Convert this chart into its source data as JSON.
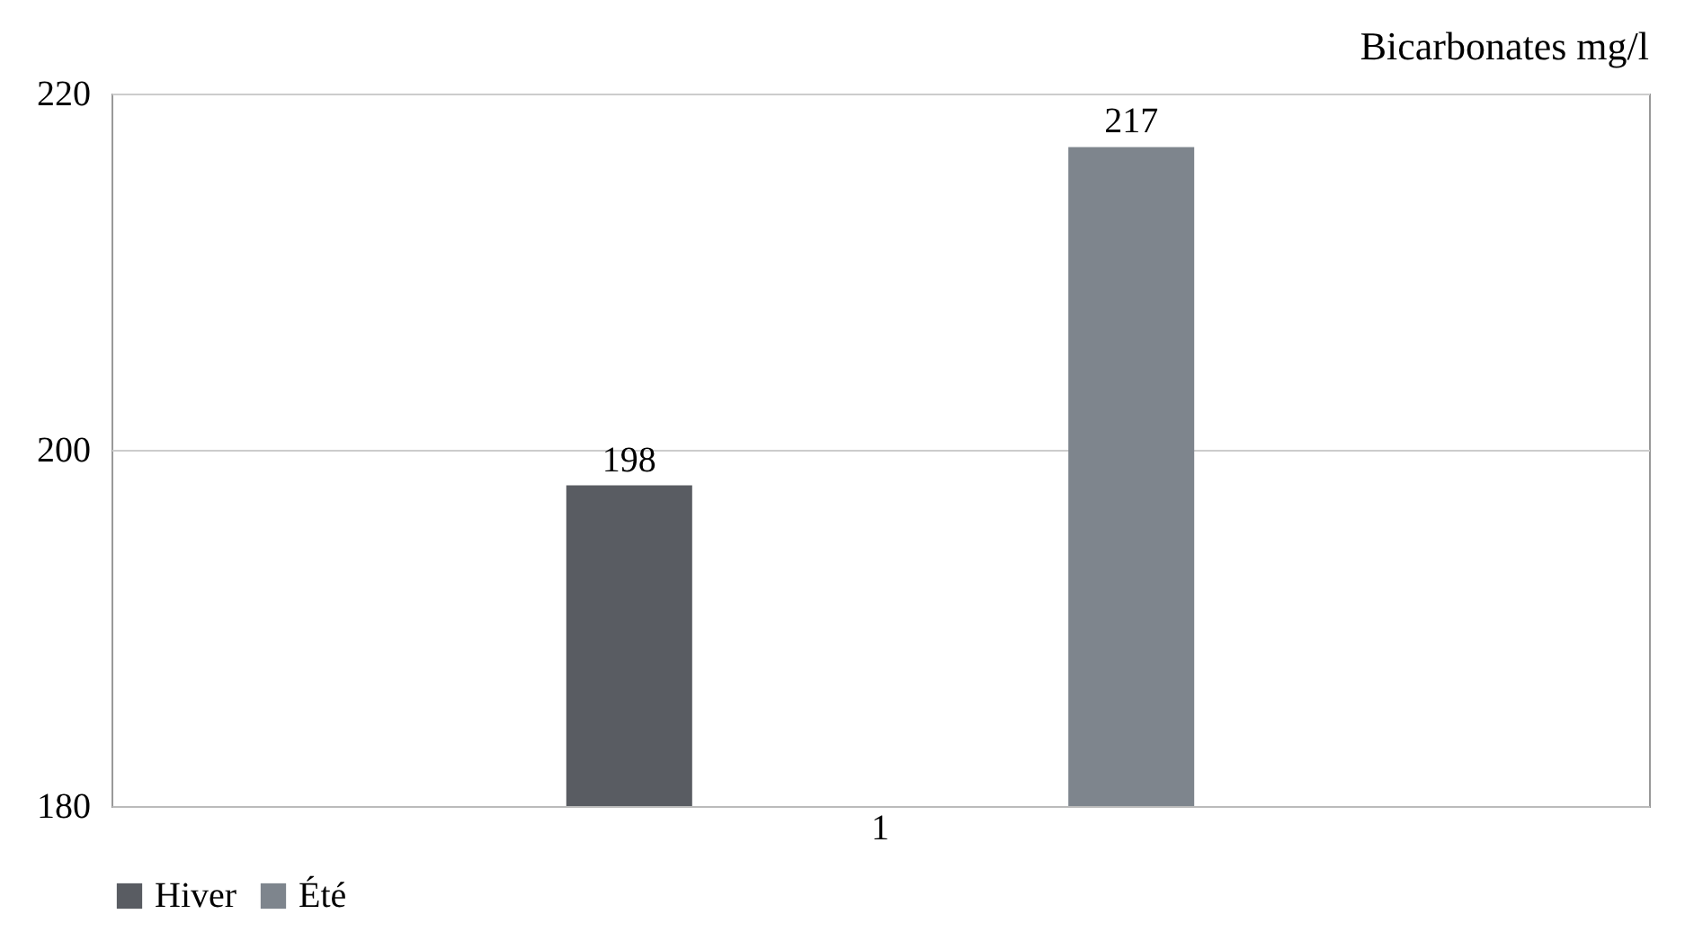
{
  "chart_data": {
    "type": "bar",
    "title": "Bicarbonates mg/l",
    "categories": [
      "1"
    ],
    "series": [
      {
        "name": "Hiver",
        "color": "#595c62",
        "values": [
          198
        ]
      },
      {
        "name": "Été",
        "color": "#7e858d",
        "values": [
          217
        ]
      }
    ],
    "ylim": [
      180,
      220
    ],
    "yticks": [
      180,
      200,
      220
    ],
    "grid": "y",
    "legend": "bottom",
    "data_labels": true
  }
}
